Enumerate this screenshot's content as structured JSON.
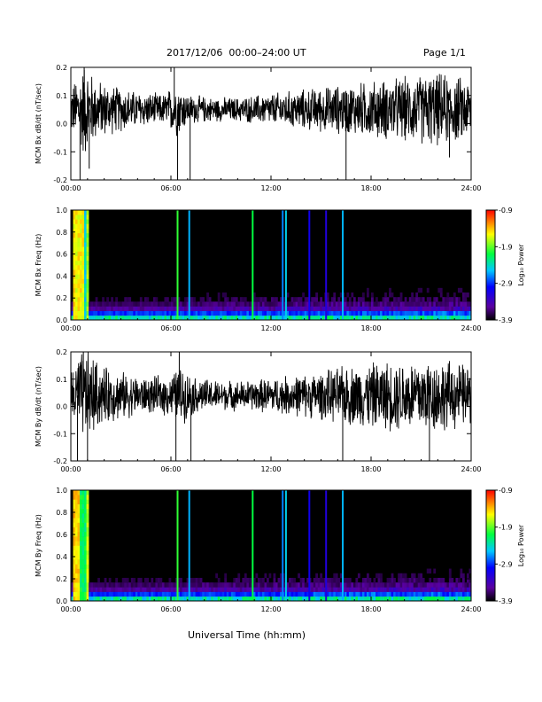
{
  "title": "2017/12/06  00:00–24:00 UT",
  "page": "Page 1/1",
  "xlabel": "Universal Time (hh:mm)",
  "colors": {
    "trace": "#000000",
    "spectrogram_bg": "#000000"
  },
  "chart_data": [
    {
      "type": "line",
      "ylabel": "MCM Bx dB/dt (nT/sec)",
      "x_ticks": [
        "00:00",
        "06:00",
        "12:00",
        "18:00",
        "24:00"
      ],
      "y_ticks": [
        "-0.2",
        "-0.1",
        "0.0",
        "0.1",
        "0.2"
      ],
      "xlim": [
        0,
        24
      ],
      "ylim": [
        -0.2,
        0.2
      ],
      "baseline": 0.05,
      "envelope": [
        [
          0,
          0.08
        ],
        [
          0.3,
          0.1
        ],
        [
          0.8,
          0.16
        ],
        [
          1.5,
          0.1
        ],
        [
          2.5,
          0.08
        ],
        [
          4,
          0.06
        ],
        [
          5.5,
          0.05
        ],
        [
          6.4,
          0.09
        ],
        [
          7,
          0.05
        ],
        [
          8.5,
          0.04
        ],
        [
          10,
          0.04
        ],
        [
          11.5,
          0.05
        ],
        [
          13,
          0.06
        ],
        [
          14.5,
          0.07
        ],
        [
          16,
          0.08
        ],
        [
          17.5,
          0.09
        ],
        [
          19,
          0.1
        ],
        [
          20.5,
          0.11
        ],
        [
          22,
          0.12
        ],
        [
          23,
          0.11
        ],
        [
          24,
          0.1
        ]
      ],
      "spikes": [
        [
          0.55,
          -0.2
        ],
        [
          0.8,
          0.2
        ],
        [
          1.1,
          -0.16
        ],
        [
          6.2,
          0.2
        ],
        [
          6.4,
          -0.2
        ],
        [
          7.15,
          -0.2
        ],
        [
          16.5,
          -0.2
        ],
        [
          22.7,
          -0.12
        ]
      ]
    },
    {
      "type": "heatmap",
      "ylabel": "MCM Bx Freq (Hz)",
      "x_ticks": [
        "00:00",
        "06:00",
        "12:00",
        "18:00",
        "24:00"
      ],
      "y_ticks": [
        "0.0",
        "0.2",
        "0.4",
        "0.6",
        "0.8",
        "1.0"
      ],
      "xlim": [
        0,
        24
      ],
      "ylim": [
        0,
        1
      ],
      "colorbar": {
        "label": "Log₁₀ Power",
        "ticks": [
          "-0.9",
          "-1.9",
          "-2.9",
          "-3.9"
        ],
        "range": [
          -3.9,
          -0.9
        ]
      },
      "bands": [
        [
          0.2,
          0.75,
          -1.4
        ],
        [
          0.75,
          0.9,
          -2.3
        ],
        [
          1.0,
          1.1,
          -1.6
        ]
      ],
      "lines": [
        [
          6.4,
          -2.0
        ],
        [
          7.1,
          -2.6
        ],
        [
          10.9,
          -2.1
        ],
        [
          12.7,
          -2.7
        ],
        [
          12.9,
          -2.5
        ],
        [
          14.3,
          -3.1
        ],
        [
          15.3,
          -3.2
        ],
        [
          16.3,
          -2.6
        ]
      ]
    },
    {
      "type": "line",
      "ylabel": "MCM By dB/dt (nT/sec)",
      "x_ticks": [
        "00:00",
        "06:00",
        "12:00",
        "18:00",
        "24:00"
      ],
      "y_ticks": [
        "-0.2",
        "-0.1",
        "0.0",
        "0.1",
        "0.2"
      ],
      "xlim": [
        0,
        24
      ],
      "ylim": [
        -0.2,
        0.2
      ],
      "baseline": 0.04,
      "envelope": [
        [
          0,
          0.09
        ],
        [
          0.5,
          0.14
        ],
        [
          1,
          0.16
        ],
        [
          1.8,
          0.1
        ],
        [
          3,
          0.08
        ],
        [
          4.5,
          0.06
        ],
        [
          6,
          0.07
        ],
        [
          6.5,
          0.1
        ],
        [
          7.5,
          0.06
        ],
        [
          9,
          0.05
        ],
        [
          10.5,
          0.05
        ],
        [
          12,
          0.06
        ],
        [
          13.5,
          0.07
        ],
        [
          15,
          0.08
        ],
        [
          16.5,
          0.1
        ],
        [
          18,
          0.11
        ],
        [
          19.5,
          0.12
        ],
        [
          21,
          0.13
        ],
        [
          22.5,
          0.12
        ],
        [
          24,
          0.1
        ]
      ],
      "spikes": [
        [
          0.4,
          -0.2
        ],
        [
          0.75,
          0.2
        ],
        [
          1.0,
          -0.2
        ],
        [
          6.3,
          -0.2
        ],
        [
          6.5,
          0.2
        ],
        [
          7.2,
          -0.2
        ],
        [
          16.3,
          -0.2
        ],
        [
          21.5,
          -0.2
        ]
      ]
    },
    {
      "type": "heatmap",
      "ylabel": "MCM By Freq (Hz)",
      "x_ticks": [
        "00:00",
        "06:00",
        "12:00",
        "18:00",
        "24:00"
      ],
      "y_ticks": [
        "0.0",
        "0.2",
        "0.4",
        "0.6",
        "0.8",
        "1.0"
      ],
      "xlim": [
        0,
        24
      ],
      "ylim": [
        0,
        1
      ],
      "colorbar": {
        "label": "Log₁₀ Power",
        "ticks": [
          "-0.9",
          "-1.9",
          "-2.9",
          "-3.9"
        ],
        "range": [
          -3.9,
          -0.9
        ]
      },
      "bands": [
        [
          0.2,
          0.6,
          -1.3
        ],
        [
          0.6,
          0.9,
          -2.0
        ],
        [
          1.0,
          1.1,
          -1.5
        ]
      ],
      "lines": [
        [
          6.4,
          -2.0
        ],
        [
          7.1,
          -2.6
        ],
        [
          10.9,
          -2.1
        ],
        [
          12.7,
          -2.7
        ],
        [
          12.9,
          -2.5
        ],
        [
          14.3,
          -3.1
        ],
        [
          15.3,
          -3.2
        ],
        [
          16.3,
          -2.6
        ]
      ]
    }
  ]
}
